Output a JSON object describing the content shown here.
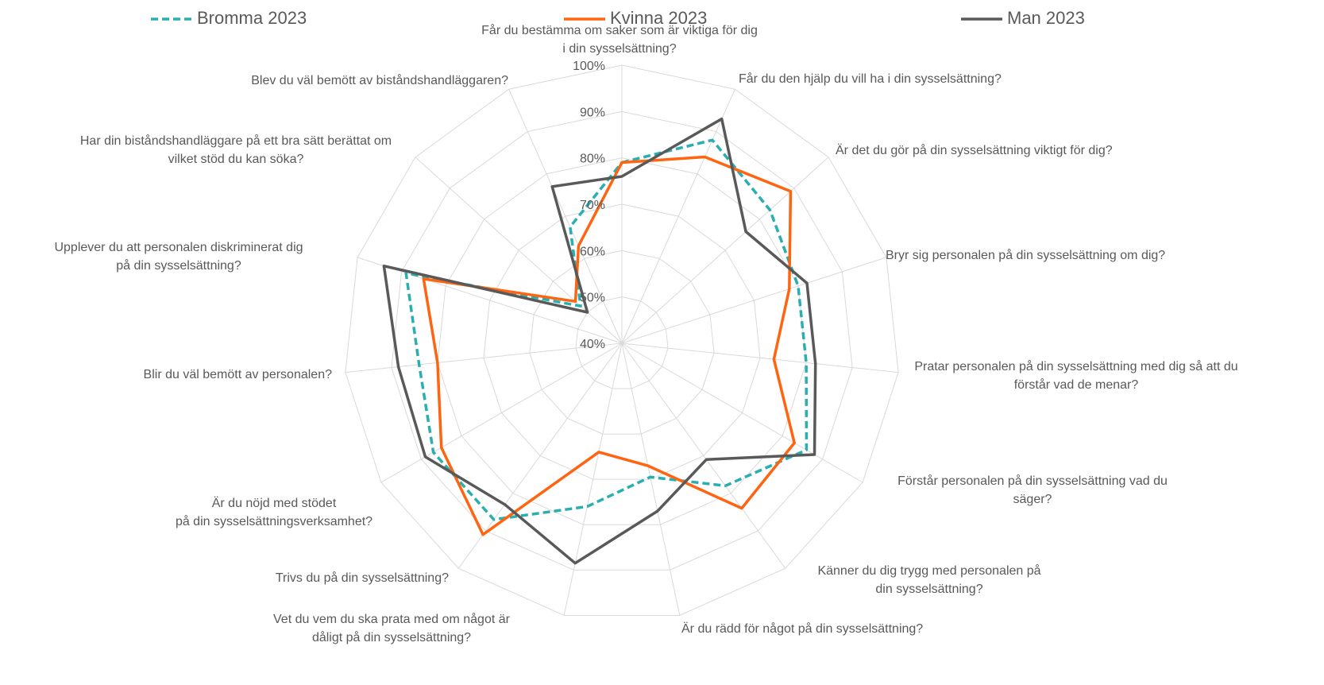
{
  "chart_data": {
    "type": "radar",
    "categories": [
      "Får du bestämma om saker som är viktiga för dig i din sysselsättning?",
      "Får du den hjälp du vill ha i din sysselsättning?",
      "Är det du gör på din sysselsättning viktigt för dig?",
      "Bryr sig personalen på din sysselsättning om dig?",
      "Pratar personalen på din sysselsättning med dig så att du förstår vad de menar?",
      "Förstår personalen på din sysselsättning vad du säger?",
      "Känner du dig trygg med personalen på din sysselsättning?",
      "Är du rädd för något på din sysselsättning?",
      "Vet du vem du ska prata med om något är dåligt på din sysselsättning?",
      "Trivs du på din sysselsättning?",
      "Är du nöjd med stödet på din sysselsättningsverksamhet?",
      "Blir du väl bemött av personalen?",
      "Upplever du att personalen diskriminerat dig på din sysselsättning?",
      "Har din biståndshandläggare på ett bra sätt berättat om vilket stöd du kan söka?",
      "Blev du väl bemött av biståndshandläggaren?"
    ],
    "series": [
      {
        "name": "Bromma 2023",
        "color": "#2aaeb0",
        "dash": true,
        "values": [
          79,
          88,
          83,
          80,
          80,
          86,
          78,
          69.5,
          76,
          87,
          87,
          84,
          89,
          52,
          67.5
        ]
      },
      {
        "name": "Kvinna 2023",
        "color": "#ff6410",
        "values": [
          79,
          84,
          89,
          78,
          73,
          83,
          84,
          67,
          64,
          91,
          85,
          80,
          85,
          53.5,
          63
        ]
      },
      {
        "name": "Man 2023",
        "color": "#595959",
        "values": [
          76,
          93,
          76,
          82,
          82,
          88,
          71,
          77,
          88.5,
          83,
          89,
          88.5,
          94,
          50,
          77
        ]
      }
    ],
    "ylim": [
      40,
      100
    ],
    "yticks": [
      {
        "value": 40,
        "label": "40%"
      },
      {
        "value": 50,
        "label": "50%"
      },
      {
        "value": 60,
        "label": "60%"
      },
      {
        "value": 70,
        "label": "70%"
      },
      {
        "value": 80,
        "label": "80%"
      },
      {
        "value": 90,
        "label": "90%"
      },
      {
        "value": 100,
        "label": "100%"
      }
    ],
    "grid": true,
    "legend": "top"
  }
}
